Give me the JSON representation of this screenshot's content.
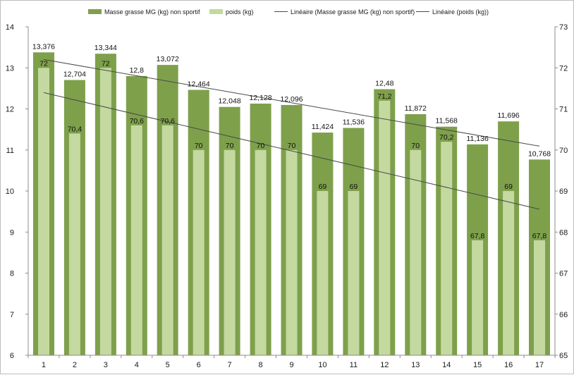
{
  "chart_data": {
    "type": "bar",
    "categories": [
      "1",
      "2",
      "3",
      "4",
      "5",
      "6",
      "7",
      "8",
      "9",
      "10",
      "11",
      "12",
      "13",
      "14",
      "15",
      "16",
      "17"
    ],
    "series": [
      {
        "name": "Masse grasse MG (kg) non sportif",
        "axis": "left",
        "color": "#7ea04b",
        "values": [
          13.376,
          12.704,
          13.344,
          12.8,
          13.072,
          12.464,
          12.048,
          12.128,
          12.096,
          11.424,
          11.536,
          12.48,
          11.872,
          11.568,
          11.136,
          11.696,
          10.768
        ],
        "labels": [
          "13,376",
          "12,704",
          "13,344",
          "12,8",
          "13,072",
          "12,464",
          "12,048",
          "12,128",
          "12,096",
          "11,424",
          "11,536",
          "12,48",
          "11,872",
          "11,568",
          "11,136",
          "11,696",
          "10,768"
        ]
      },
      {
        "name": "poids (kg)",
        "axis": "right",
        "color": "#c3d9a0",
        "values": [
          72,
          70.4,
          72,
          70.6,
          70.6,
          70,
          70,
          70,
          70,
          69,
          69,
          71.2,
          70,
          70.2,
          67.8,
          69,
          67.8
        ],
        "labels": [
          "72",
          "70,4",
          "72",
          "70,6",
          "70,6",
          "70",
          "70",
          "70",
          "70",
          "69",
          "69",
          "71,2",
          "70",
          "70,2",
          "67,8",
          "69",
          "67,8"
        ]
      }
    ],
    "trendlines": [
      {
        "name": "Linéaire (Masse grasse MG (kg) non sportif)",
        "of": "Masse grasse MG (kg) non sportif",
        "axis": "left",
        "color": "#4a4a4a"
      },
      {
        "name": "Linéaire (poids (kg))",
        "of": "poids (kg)",
        "axis": "right",
        "color": "#4a4a4a"
      }
    ],
    "y_left": {
      "min": 6,
      "max": 14,
      "ticks": [
        "6",
        "7",
        "8",
        "9",
        "10",
        "11",
        "12",
        "13",
        "14"
      ]
    },
    "y_right": {
      "min": 65,
      "max": 73,
      "ticks": [
        "65",
        "66",
        "67",
        "68",
        "69",
        "70",
        "71",
        "72",
        "73"
      ]
    },
    "legend_position": "top",
    "grid": false
  }
}
